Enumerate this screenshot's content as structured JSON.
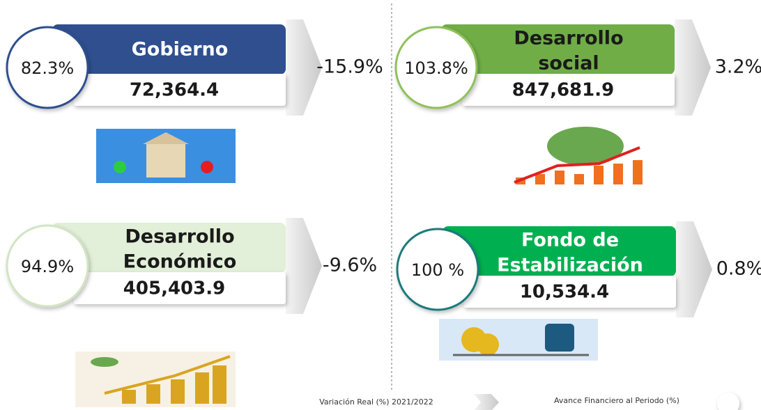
{
  "panels": [
    {
      "title_lines": [
        "Gobierno"
      ],
      "percent": "82.3%",
      "amount": "72,364.4",
      "variation": "-15.9%"
    },
    {
      "title_lines": [
        "Desarrollo",
        "social"
      ],
      "percent": "103.8%",
      "amount": "847,681.9",
      "variation": "3.2%"
    },
    {
      "title_lines": [
        "Desarrollo",
        "Económico"
      ],
      "percent": "94.9%",
      "amount": "405,403.9",
      "variation": "-9.6%"
    },
    {
      "title_lines": [
        "Fondo de",
        "Estabilización"
      ],
      "percent": "100 %",
      "amount": "10,534.4",
      "variation": "0.8%"
    }
  ],
  "legend": {
    "variation": "Variación Real (%) 2021/2022",
    "progress": "Avance Financiero al Periodo (%)"
  }
}
